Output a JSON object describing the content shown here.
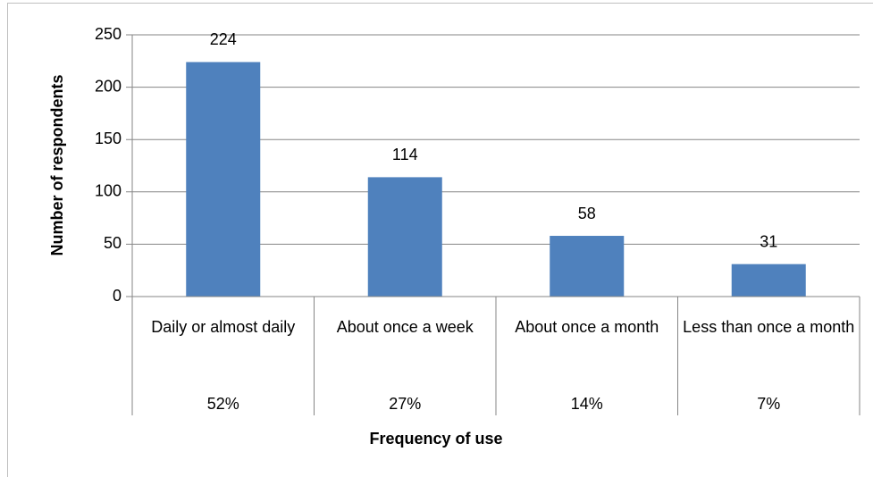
{
  "chart_data": {
    "type": "bar",
    "categories": [
      "Daily or almost daily",
      "About once a week",
      "About once a month",
      "Less than once a month"
    ],
    "subcategories": [
      "52%",
      "27%",
      "14%",
      "7%"
    ],
    "values": [
      224,
      114,
      58,
      31
    ],
    "color": "#4f81bd",
    "ylim": [
      0,
      250
    ],
    "yticks": [
      0,
      50,
      100,
      150,
      200,
      250
    ],
    "grid": true,
    "x_label": "Frequency of use",
    "y_label": "Number of respondents"
  }
}
